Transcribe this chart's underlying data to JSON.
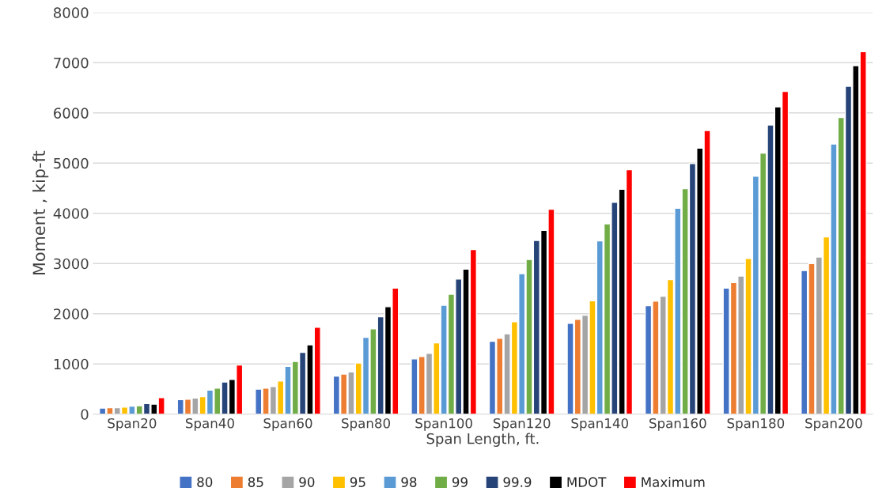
{
  "chart_data": {
    "type": "bar",
    "xlabel": "Span Length, ft.",
    "ylabel": "Moment , kip-ft",
    "categories": [
      "Span20",
      "Span40",
      "Span60",
      "Span80",
      "Span100",
      "Span120",
      "Span140",
      "Span160",
      "Span180",
      "Span200"
    ],
    "series": [
      {
        "name": "80",
        "color": "#4472c4",
        "values": [
          120,
          290,
          500,
          760,
          1100,
          1450,
          1810,
          2160,
          2510,
          2860
        ]
      },
      {
        "name": "85",
        "color": "#ed7d31",
        "values": [
          130,
          300,
          520,
          800,
          1150,
          1510,
          1890,
          2250,
          2620,
          3000
        ]
      },
      {
        "name": "90",
        "color": "#a5a5a5",
        "values": [
          130,
          320,
          550,
          840,
          1210,
          1600,
          1970,
          2350,
          2750,
          3130
        ]
      },
      {
        "name": "95",
        "color": "#ffc000",
        "values": [
          140,
          350,
          660,
          1020,
          1420,
          1840,
          2260,
          2680,
          3100,
          3530
        ]
      },
      {
        "name": "98",
        "color": "#5b9bd5",
        "values": [
          160,
          480,
          950,
          1530,
          2170,
          2800,
          3450,
          4100,
          4740,
          5380
        ]
      },
      {
        "name": "99",
        "color": "#70ad47",
        "values": [
          170,
          520,
          1050,
          1700,
          2390,
          3080,
          3790,
          4490,
          5200,
          5910
        ]
      },
      {
        "name": "99.9",
        "color": "#264478",
        "values": [
          210,
          640,
          1230,
          1940,
          2690,
          3460,
          4220,
          4990,
          5760,
          6530
        ]
      },
      {
        "name": "MDOT",
        "color": "#000000",
        "values": [
          200,
          690,
          1380,
          2140,
          2890,
          3660,
          4480,
          5300,
          6120,
          6940
        ]
      },
      {
        "name": "Maximum",
        "color": "#ff0000",
        "values": [
          330,
          980,
          1730,
          2510,
          3280,
          4080,
          4870,
          5650,
          6430,
          7220
        ]
      }
    ],
    "ylim": [
      0,
      8000
    ],
    "yticks": [
      0,
      1000,
      2000,
      3000,
      4000,
      5000,
      6000,
      7000,
      8000
    ],
    "grid": "y",
    "legend": "bottom"
  }
}
